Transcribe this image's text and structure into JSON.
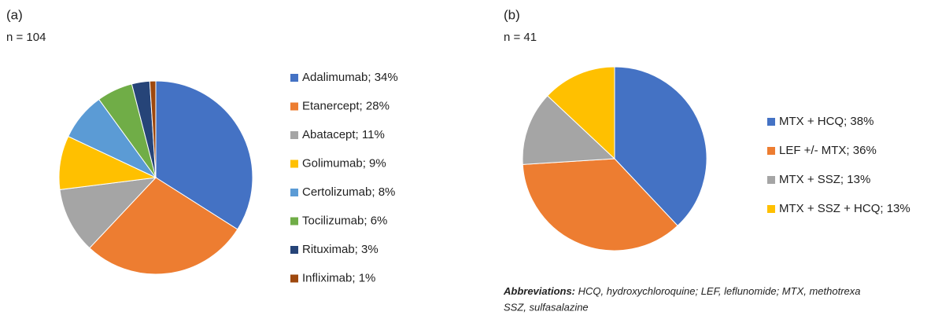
{
  "chart_data": [
    {
      "type": "pie",
      "title": "(a)",
      "subtitle": "n = 104",
      "categories": [
        "Adalimumab; 34%",
        "Etanercept; 28%",
        "Abatacept; 11%",
        "Golimumab; 9%",
        "Certolizumab; 8%",
        "Tocilizumab; 6%",
        "Rituximab; 3%",
        "Infliximab; 1%"
      ],
      "values": [
        34,
        28,
        11,
        9,
        8,
        6,
        3,
        1
      ],
      "colors": [
        "#4472c4",
        "#ed7d31",
        "#a5a5a5",
        "#ffc000",
        "#5b9bd5",
        "#70ad47",
        "#264478",
        "#9e480e"
      ]
    },
    {
      "type": "pie",
      "title": "(b)",
      "subtitle": "n = 41",
      "categories": [
        "MTX + HCQ; 38%",
        "LEF +/- MTX; 36%",
        "MTX + SSZ; 13%",
        "MTX + SSZ + HCQ; 13%"
      ],
      "values": [
        38,
        36,
        13,
        13
      ],
      "colors": [
        "#4472c4",
        "#ed7d31",
        "#a5a5a5",
        "#ffc000"
      ],
      "note_label": "Abbreviations:",
      "note_lines": [
        " HCQ, hydroxychloroquine; LEF, leflunomide; MTX, methotrexa",
        "SSZ, sulfasalazine"
      ]
    }
  ]
}
